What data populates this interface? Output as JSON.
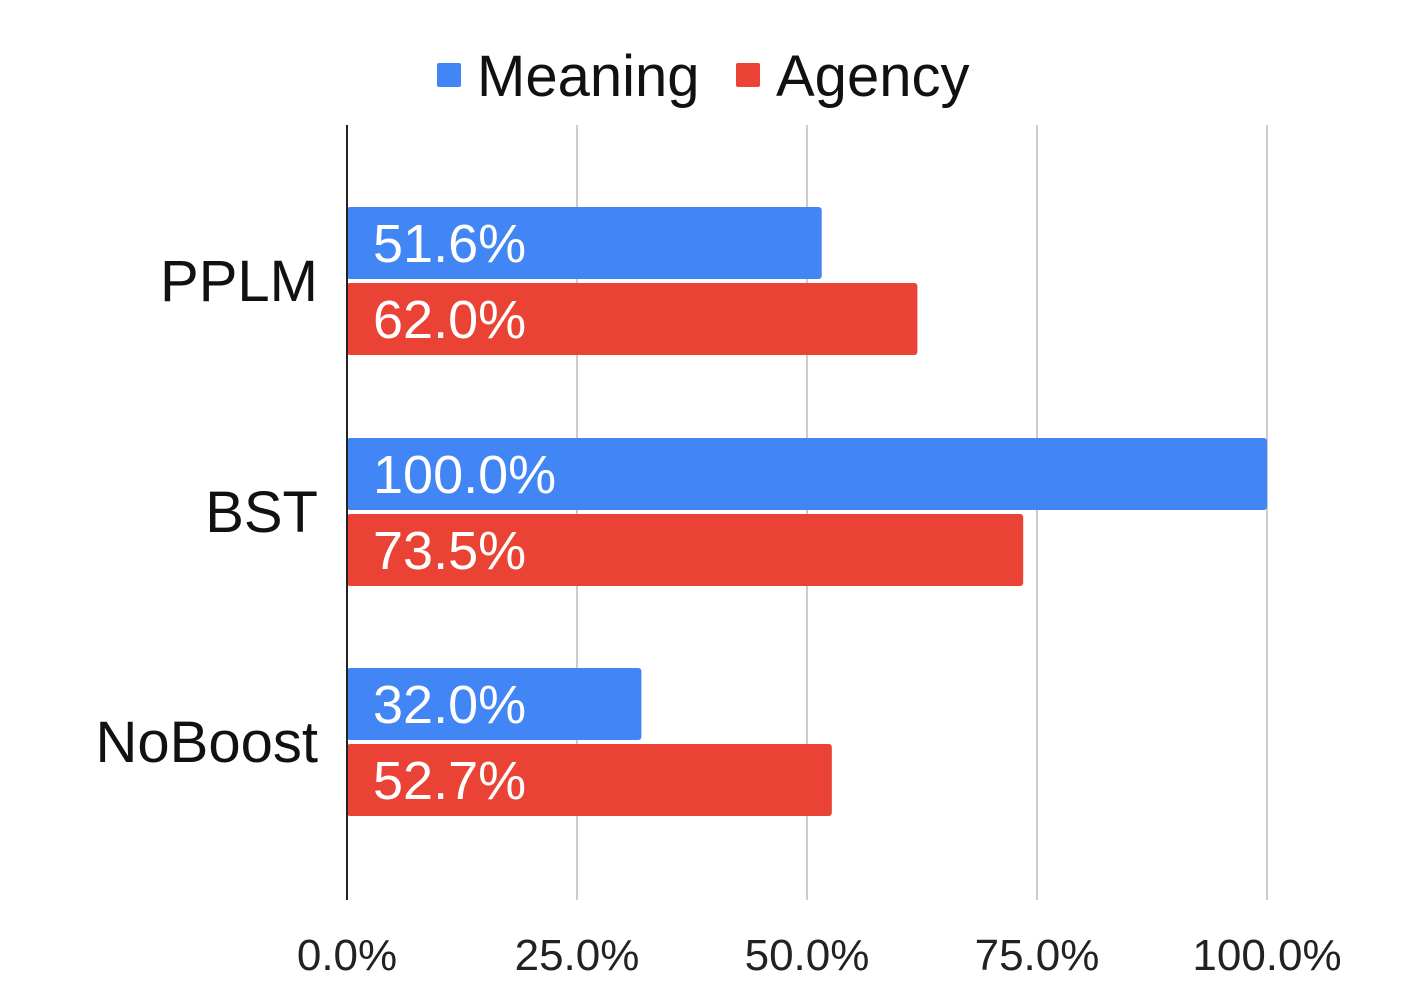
{
  "chart_data": {
    "type": "bar",
    "orientation": "horizontal",
    "categories": [
      "PPLM",
      "BST",
      "NoBoost"
    ],
    "series": [
      {
        "name": "Meaning",
        "color": "#4285F4",
        "values": [
          51.6,
          100.0,
          32.0
        ],
        "labels": [
          "51.6%",
          "100.0%",
          "32.0%"
        ]
      },
      {
        "name": "Agency",
        "color": "#EA4335",
        "values": [
          62.0,
          73.5,
          52.7
        ],
        "labels": [
          "62.0%",
          "73.5%",
          "52.7%"
        ]
      }
    ],
    "xlim": [
      0,
      100
    ],
    "xticks": [
      0,
      25,
      50,
      75,
      100
    ],
    "xtick_labels": [
      "0.0%",
      "25.0%",
      "50.0%",
      "75.0%",
      "100.0%"
    ],
    "grid": true,
    "legend_position": "top-center",
    "title": "",
    "xlabel": "",
    "ylabel": ""
  }
}
